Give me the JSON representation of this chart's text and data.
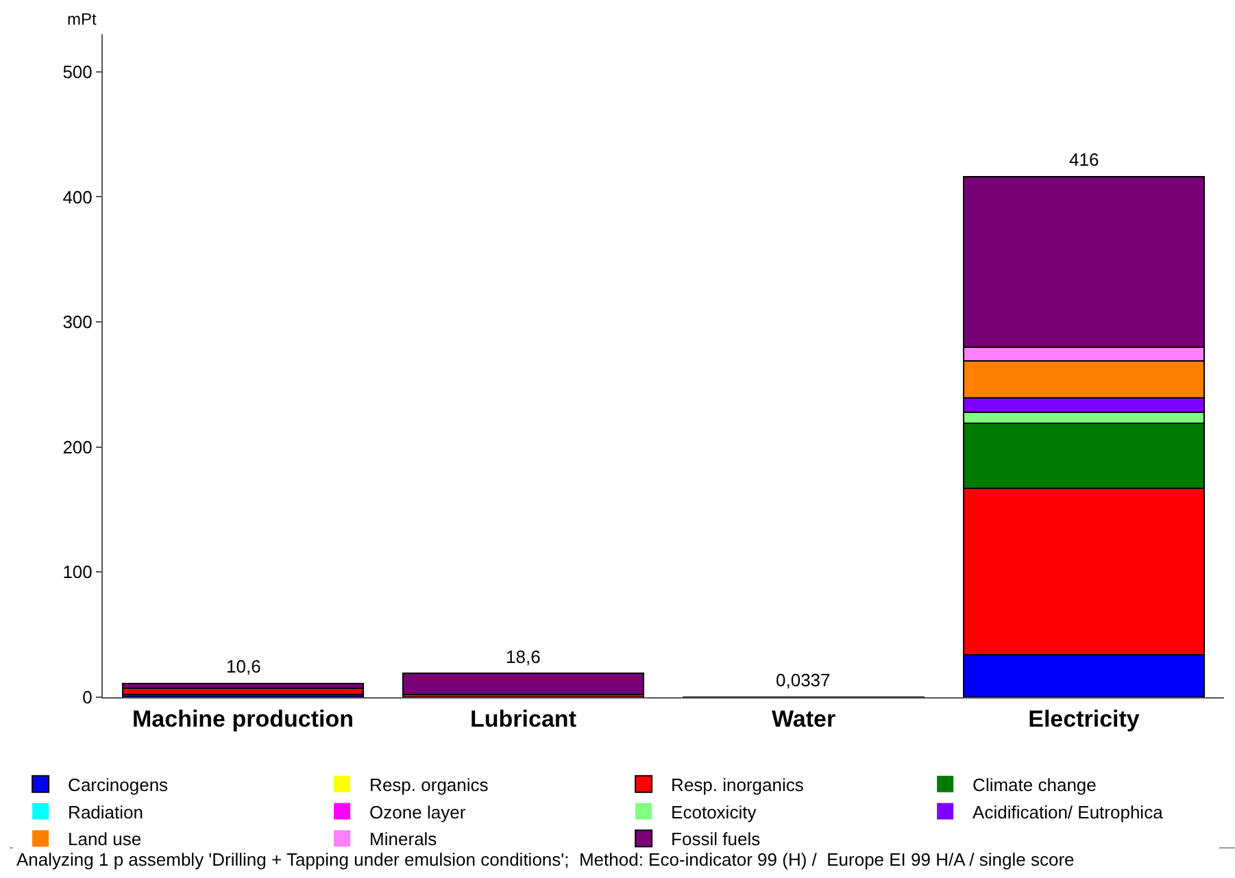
{
  "chart_data": {
    "type": "bar",
    "stacked": true,
    "ylabel": "mPt",
    "categories": [
      "Machine production",
      "Lubricant",
      "Water",
      "Electricity"
    ],
    "series": [
      {
        "name": "Carcinogens",
        "color": "#0000ff",
        "values": [
          2,
          0,
          0,
          34
        ]
      },
      {
        "name": "Resp. organics",
        "color": "#ffff00",
        "values": [
          0,
          0,
          0,
          0
        ]
      },
      {
        "name": "Resp. inorganics",
        "color": "#ff0000",
        "values": [
          5,
          2,
          0,
          133
        ]
      },
      {
        "name": "Climate change",
        "color": "#007a00",
        "values": [
          0,
          0,
          0,
          52
        ]
      },
      {
        "name": "Radiation",
        "color": "#00ffff",
        "values": [
          0,
          0,
          0,
          0
        ]
      },
      {
        "name": "Ozone layer",
        "color": "#ff00ff",
        "values": [
          0,
          0,
          0,
          0
        ]
      },
      {
        "name": "Ecotoxicity",
        "color": "#80ff80",
        "values": [
          0,
          0,
          0,
          9
        ]
      },
      {
        "name": "Acidification/ Eutrophica",
        "color": "#8000ff",
        "values": [
          0,
          0,
          0,
          11
        ]
      },
      {
        "name": "Land use",
        "color": "#ff8000",
        "values": [
          0,
          0,
          0,
          30
        ]
      },
      {
        "name": "Minerals",
        "color": "#ff80ff",
        "values": [
          0,
          0,
          0,
          11
        ]
      },
      {
        "name": "Fossil fuels",
        "color": "#7a0078",
        "values": [
          4,
          17,
          0.0337,
          136
        ]
      }
    ],
    "totals": [
      "10,6",
      "18,6",
      "0,0337",
      "416"
    ],
    "ylim": [
      0,
      530
    ],
    "yticks": [
      0,
      100,
      200,
      300,
      400,
      500
    ],
    "grid": false,
    "legend": "bottom",
    "annotations": [
      "Analyzing 1 p assembly 'Drilling + Tapping under emulsion conditions';  Method: Eco-indicator 99 (H) /  Europe EI 99 H/A / single score"
    ]
  }
}
